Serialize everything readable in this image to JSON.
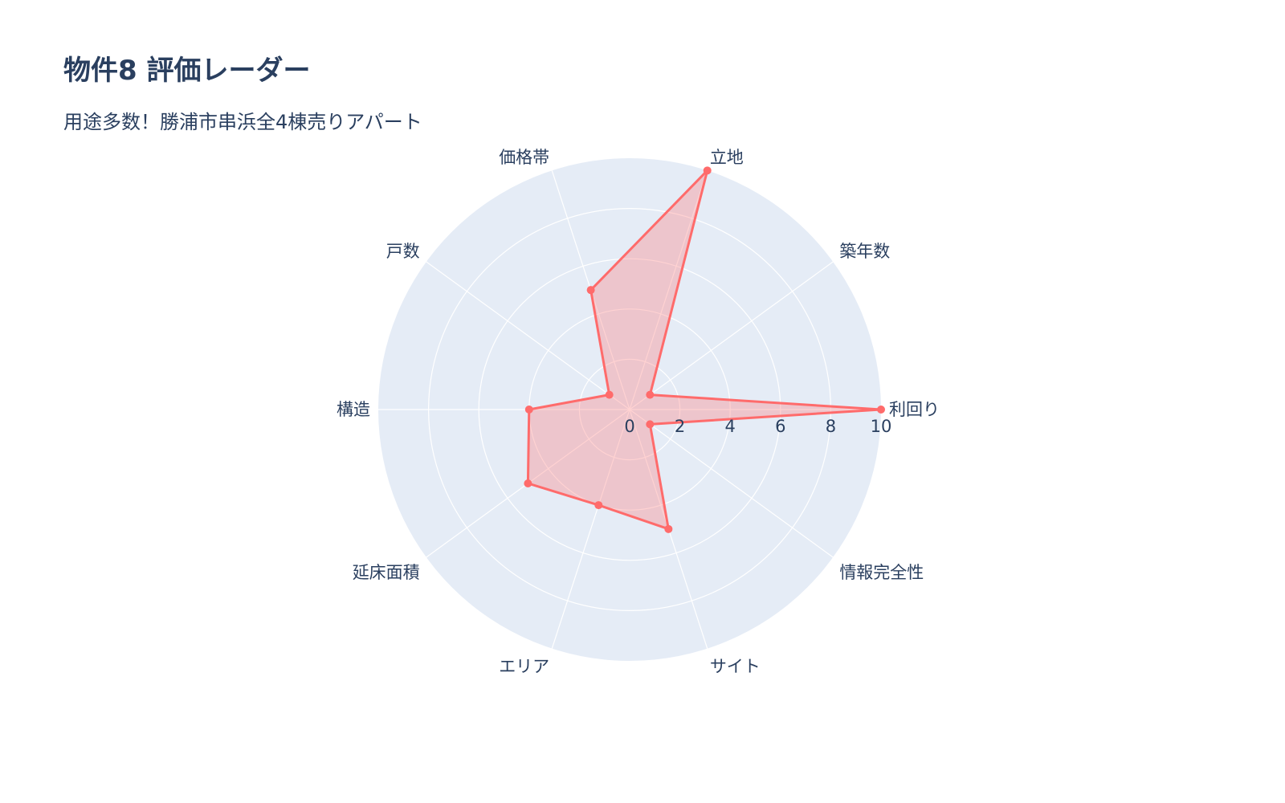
{
  "chart_data": {
    "type": "radar",
    "title": "物件8 評価レーダー",
    "subtitle": "用途多数！勝浦市串浜全4棟売りアパート",
    "categories": [
      "利回り",
      "築年数",
      "立地",
      "価格帯",
      "戸数",
      "構造",
      "延床面積",
      "エリア",
      "サイト",
      "情報完全性"
    ],
    "series": [
      {
        "values": [
          10,
          1,
          10,
          5,
          1,
          4,
          5,
          4,
          5,
          1
        ]
      }
    ],
    "radial_range": [
      0,
      10
    ],
    "radial_ticks": [
      "0",
      "2",
      "4",
      "6",
      "8",
      "10"
    ],
    "grid": true,
    "colors": {
      "line": "#ff6b6b",
      "fill": "rgba(255,107,107,0.3)",
      "polar_bg": "#e5ecf6",
      "grid": "#ffffff"
    }
  }
}
